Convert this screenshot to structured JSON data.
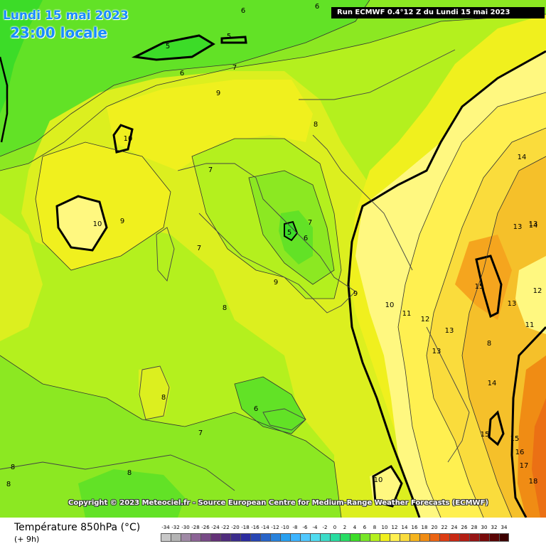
{
  "header": {
    "date": "Lundi 15 mai 2023",
    "local_time": "23:00 locale",
    "run_info": "Run ECMWF 0.4°12 Z du Lundi 15 mai 2023"
  },
  "footer": {
    "parameter": "Température 850hPa (°C)",
    "forecast_offset": "(+ 9h)",
    "copyright": "Copyright © 2023 Meteociel.fr - Source European Centre for Medium-Range Weather Forecasts (ECMWF)"
  },
  "legend": {
    "values": [
      "-34",
      "-32",
      "-30",
      "-28",
      "-26",
      "-24",
      "-22",
      "-20",
      "-18",
      "-16",
      "-14",
      "-12",
      "-10",
      "-8",
      "-6",
      "-4",
      "-2",
      "0",
      "2",
      "4",
      "6",
      "8",
      "10",
      "12",
      "14",
      "16",
      "18",
      "20",
      "22",
      "24",
      "26",
      "28",
      "30",
      "32",
      "34"
    ],
    "colors": [
      "#c8c8c8",
      "#b4b4b4",
      "#a08aa6",
      "#8c6496",
      "#784b87",
      "#643278",
      "#502d7d",
      "#3c2d8c",
      "#2d2da0",
      "#2846b4",
      "#2864c8",
      "#2882dc",
      "#28a0f0",
      "#3cb4ff",
      "#50c8ff",
      "#50dcf0",
      "#3cdcc8",
      "#28dca0",
      "#28dc64",
      "#3cdc28",
      "#78e628",
      "#b4f01e",
      "#f0f01e",
      "#fff050",
      "#fadc3c",
      "#f5b41e",
      "#f08c14",
      "#eb6414",
      "#dc3c14",
      "#c82814",
      "#b41e14",
      "#961414",
      "#780a0a",
      "#5a0505",
      "#3c0000"
    ]
  },
  "contour_labels": [
    "6",
    "6",
    "5",
    "5",
    "6",
    "7",
    "9",
    "10",
    "10",
    "9",
    "7",
    "7",
    "8",
    "6",
    "5",
    "7",
    "8",
    "9",
    "9",
    "8",
    "8",
    "7",
    "6",
    "8",
    "8",
    "10",
    "11",
    "12",
    "13",
    "13",
    "13",
    "14",
    "14",
    "13",
    "15",
    "13",
    "12",
    "11",
    "14",
    "15",
    "15",
    "16",
    "17",
    "18",
    "10",
    "8"
  ],
  "map_colors": {
    "t5": "#3cdc28",
    "t6": "#62e226",
    "t7": "#8ce822",
    "t8": "#b4f01e",
    "t9": "#dcef1f",
    "t10": "#f0f01e",
    "t11": "#fff880",
    "t12": "#fff050",
    "t13": "#fadc3c",
    "t14": "#f5c02a",
    "t15": "#f5a51e",
    "t16": "#f08c14",
    "t17": "#eb7014"
  }
}
